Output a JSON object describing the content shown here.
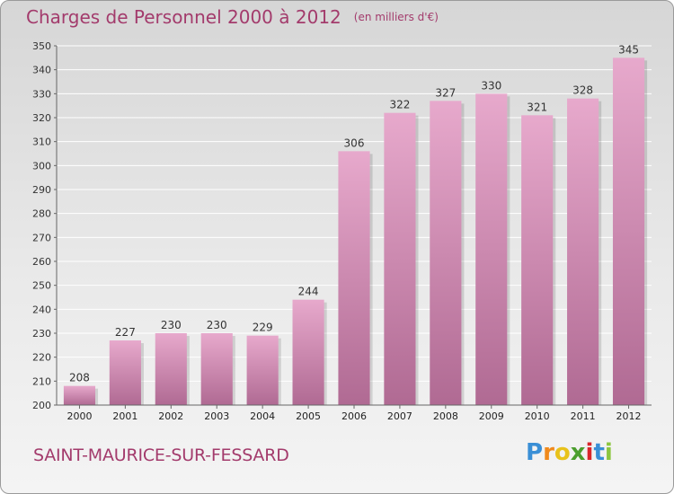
{
  "title": "Charges de Personnel 2000 à 2012",
  "unit": "(en milliers d'€)",
  "city": "SAINT-MAURICE-SUR-FESSARD",
  "logo": {
    "letters": [
      "P",
      "r",
      "o",
      "x",
      "i",
      "t",
      "i"
    ],
    "colors": [
      "#3a8fd6",
      "#f08a1c",
      "#e8c21b",
      "#4b9e2e",
      "#d9262b",
      "#3a8fd6",
      "#8cc63f"
    ]
  },
  "colors": {
    "bar_top": "#e7a9cc",
    "bar_bottom": "#b06a93",
    "title": "#a33b6c",
    "grid": "#ffffff"
  },
  "chart_data": {
    "type": "bar",
    "title": "Charges de Personnel 2000 à 2012",
    "subtitle": "(en milliers d'€)",
    "categories": [
      "2000",
      "2001",
      "2002",
      "2003",
      "2004",
      "2005",
      "2006",
      "2007",
      "2008",
      "2009",
      "2010",
      "2011",
      "2012"
    ],
    "values": [
      208,
      227,
      230,
      230,
      229,
      244,
      306,
      322,
      327,
      330,
      321,
      328,
      345
    ],
    "ylim": [
      200,
      350
    ],
    "yticks": [
      200,
      210,
      220,
      230,
      240,
      250,
      260,
      270,
      280,
      290,
      300,
      310,
      320,
      330,
      340,
      350
    ],
    "grid": true,
    "data_labels": true
  }
}
